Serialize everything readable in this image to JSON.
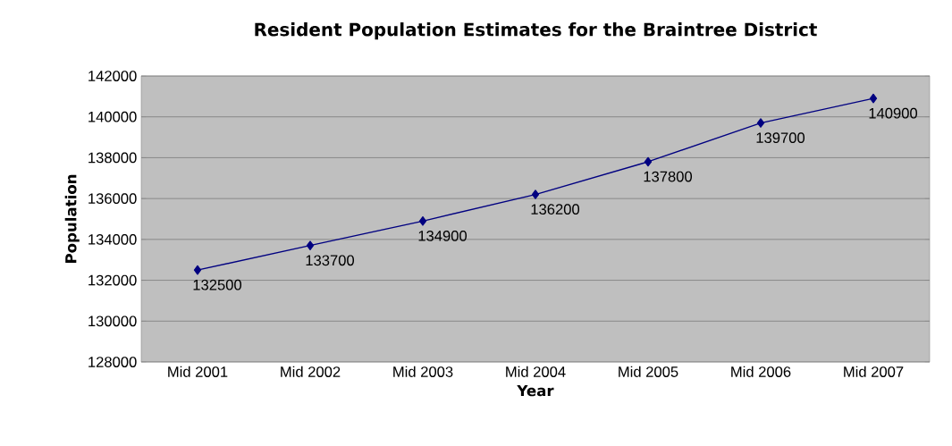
{
  "chart_data": {
    "type": "line",
    "title": "Resident Population Estimates for the Braintree District",
    "xlabel": "Year",
    "ylabel": "Population",
    "categories": [
      "Mid 2001",
      "Mid 2002",
      "Mid 2003",
      "Mid 2004",
      "Mid 2005",
      "Mid 2006",
      "Mid 2007"
    ],
    "series": [
      {
        "color": "#000080",
        "values": [
          132500,
          133700,
          134900,
          136200,
          137800,
          139700,
          140900
        ]
      }
    ],
    "ylim": [
      128000,
      142000
    ],
    "yticks": [
      128000,
      130000,
      132000,
      134000,
      136000,
      138000,
      140000,
      142000
    ],
    "grid": "y",
    "marker": "diamond",
    "line_style": "solid",
    "data_labels": true
  }
}
